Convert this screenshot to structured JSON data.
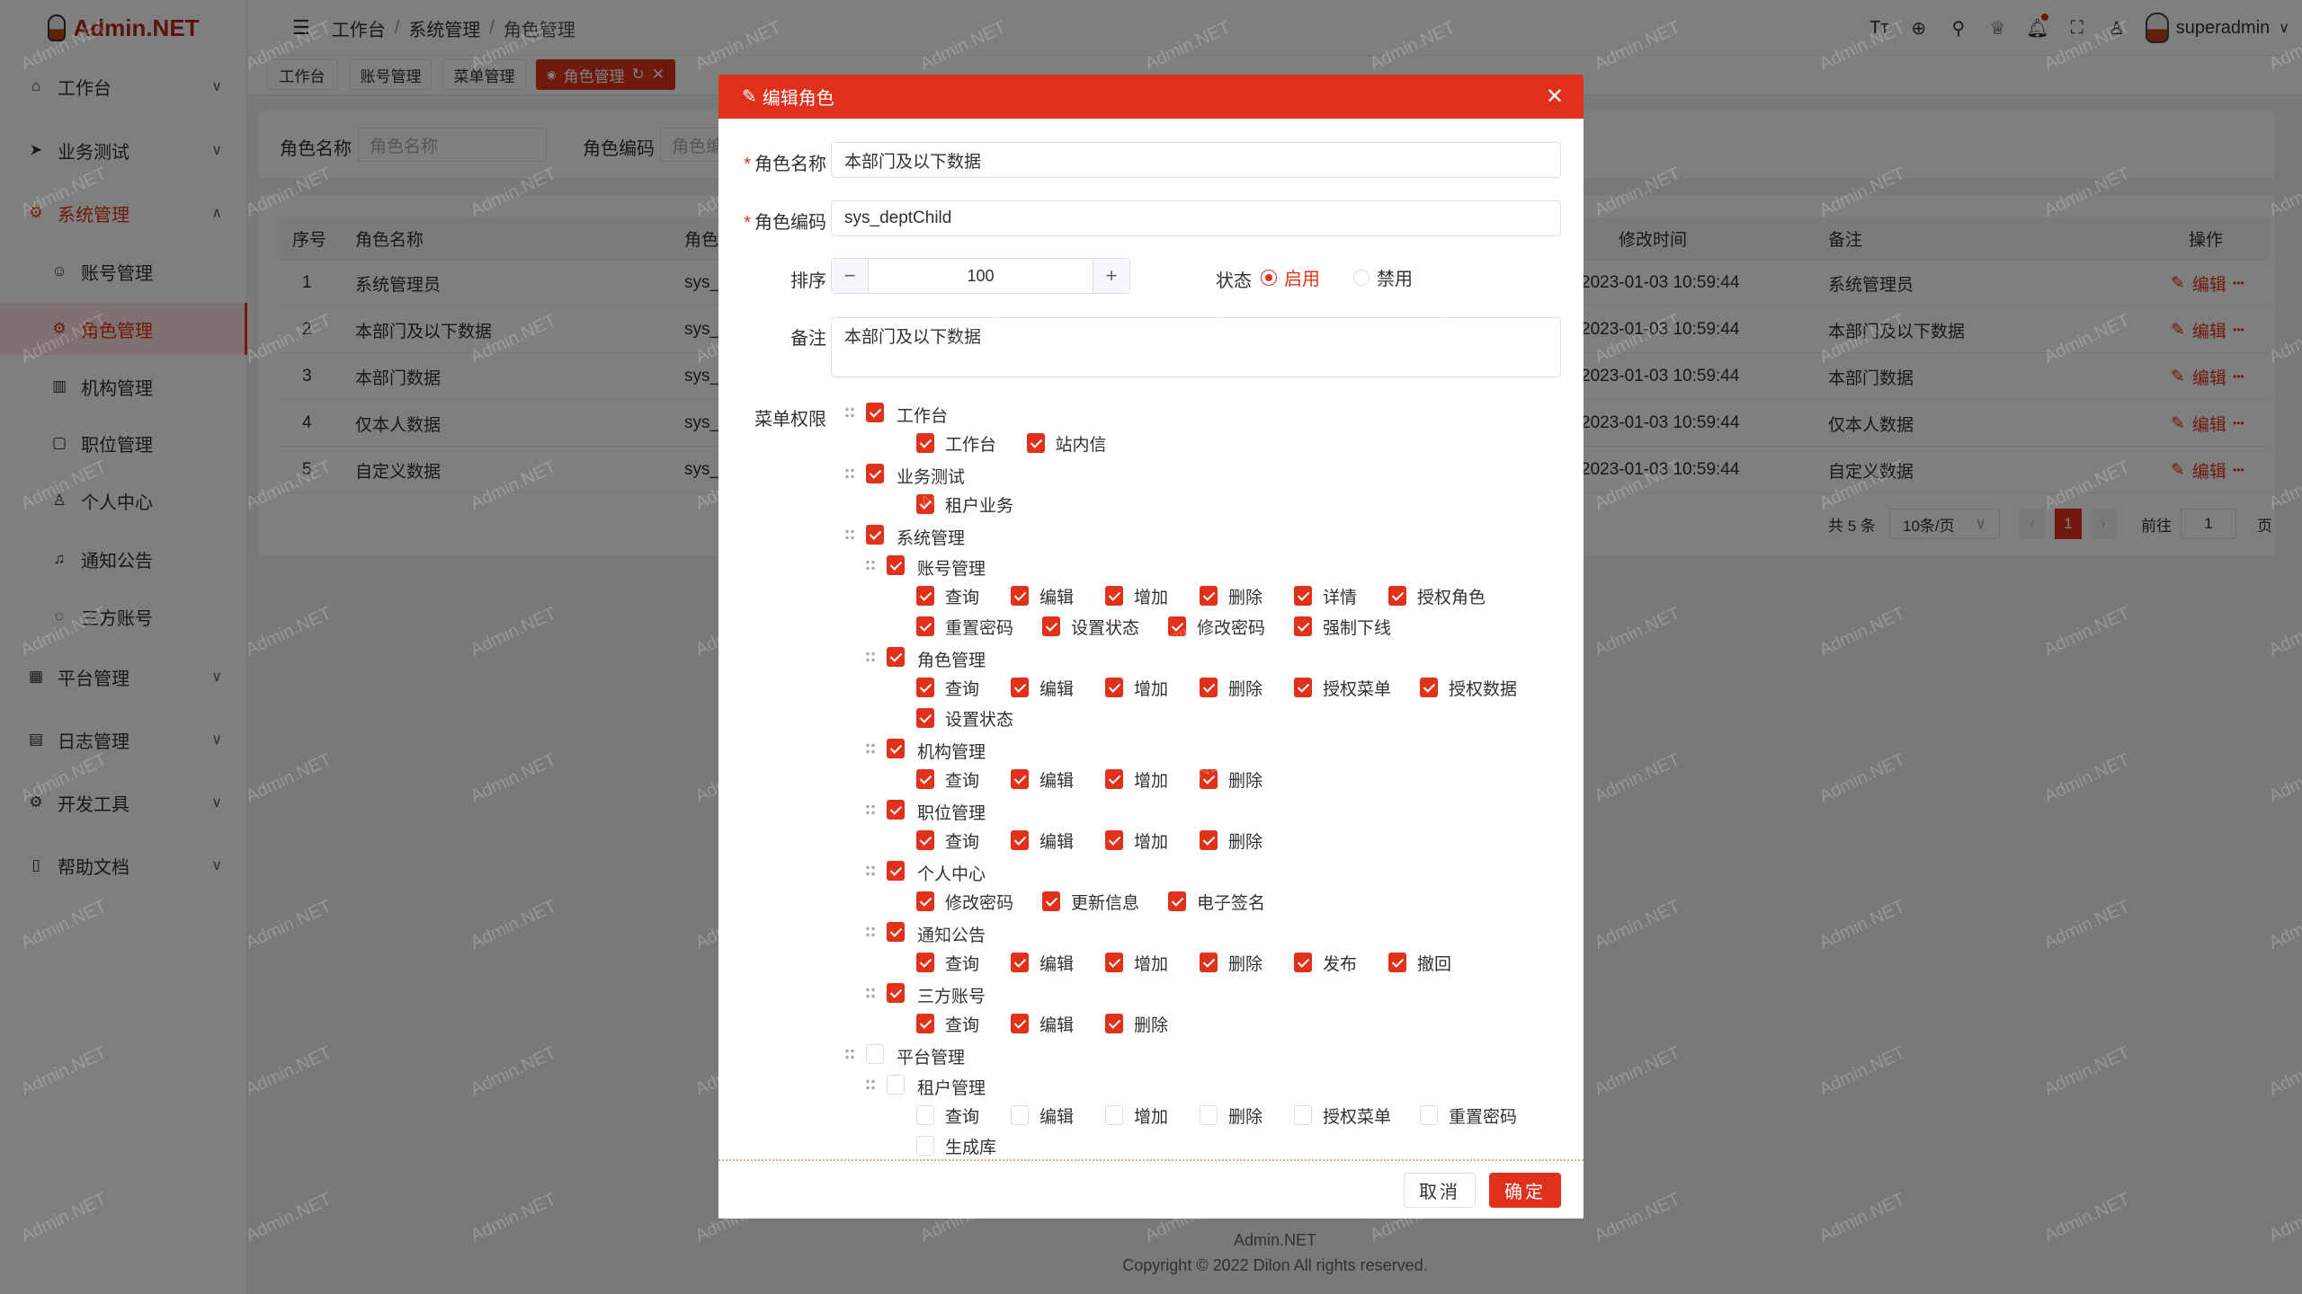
{
  "app": {
    "logo": "Admin.NET",
    "watermark": "Admin.NET",
    "accent": "#e0321a"
  },
  "sidebar": {
    "items": [
      {
        "label": "工作台",
        "icon": "home-icon",
        "glyph": "⌂",
        "chev": "∨",
        "type": "group"
      },
      {
        "label": "业务测试",
        "icon": "send-icon",
        "glyph": "➤",
        "chev": "∨",
        "type": "group"
      },
      {
        "label": "系统管理",
        "icon": "gear-icon",
        "glyph": "⚙",
        "chev": "∧",
        "type": "group-open"
      },
      {
        "label": "账号管理",
        "icon": "user-icon",
        "glyph": "☺",
        "type": "sub"
      },
      {
        "label": "角色管理",
        "icon": "role-icon",
        "glyph": "⚙",
        "type": "sub-selected"
      },
      {
        "label": "机构管理",
        "icon": "org-icon",
        "glyph": "▥",
        "type": "sub"
      },
      {
        "label": "职位管理",
        "icon": "position-icon",
        "glyph": "▢",
        "type": "sub"
      },
      {
        "label": "个人中心",
        "icon": "person-icon",
        "glyph": "♙",
        "type": "sub"
      },
      {
        "label": "通知公告",
        "icon": "bell-icon",
        "glyph": "♫",
        "type": "sub"
      },
      {
        "label": "三方账号",
        "icon": "chat-icon",
        "glyph": "◌",
        "type": "sub"
      },
      {
        "label": "平台管理",
        "icon": "grid-icon",
        "glyph": "▦",
        "chev": "∨",
        "type": "group"
      },
      {
        "label": "日志管理",
        "icon": "log-icon",
        "glyph": "▤",
        "chev": "∨",
        "type": "group"
      },
      {
        "label": "开发工具",
        "icon": "tool-icon",
        "glyph": "⚙",
        "chev": "∨",
        "type": "group"
      },
      {
        "label": "帮助文档",
        "icon": "doc-icon",
        "glyph": "▯",
        "chev": "∨",
        "type": "group"
      }
    ]
  },
  "header": {
    "breadcrumb": [
      "工作台",
      "系统管理",
      "角色管理"
    ],
    "username": "superadmin",
    "icons": [
      {
        "name": "font-size-icon",
        "glyph": "Tт"
      },
      {
        "name": "language-icon",
        "glyph": "⊕"
      },
      {
        "name": "search-icon",
        "glyph": "⚲"
      },
      {
        "name": "theme-shirt-icon",
        "glyph": "♕"
      },
      {
        "name": "bell-icon",
        "glyph": "🔔︎",
        "dot": true
      },
      {
        "name": "fullscreen-icon",
        "glyph": "⛶"
      },
      {
        "name": "user-icon",
        "glyph": "♙"
      }
    ]
  },
  "tabs": [
    {
      "label": "工作台"
    },
    {
      "label": "账号管理"
    },
    {
      "label": "菜单管理"
    },
    {
      "label": "角色管理",
      "active": true
    }
  ],
  "filter": {
    "role_name_label": "角色名称",
    "role_name_placeholder": "角色名称",
    "role_code_label": "角色编码",
    "role_code_placeholder": "角色编码"
  },
  "table": {
    "headers": {
      "index": "序号",
      "name": "角色名称",
      "code": "角色编码",
      "updated": "修改时间",
      "remark": "备注",
      "ops": "操作"
    },
    "rows": [
      {
        "index": "1",
        "name": "系统管理员",
        "code": "sys_",
        "updated": "2023-01-03 10:59:44",
        "remark": "系统管理员"
      },
      {
        "index": "2",
        "name": "本部门及以下数据",
        "code": "sys_",
        "updated": "2023-01-03 10:59:44",
        "remark": "本部门及以下数据"
      },
      {
        "index": "3",
        "name": "本部门数据",
        "code": "sys_",
        "updated": "2023-01-03 10:59:44",
        "remark": "本部门数据"
      },
      {
        "index": "4",
        "name": "仅本人数据",
        "code": "sys_",
        "updated": "2023-01-03 10:59:44",
        "remark": "仅本人数据"
      },
      {
        "index": "5",
        "name": "自定义数据",
        "code": "sys_",
        "updated": "2023-01-03 10:59:44",
        "remark": "自定义数据"
      }
    ],
    "edit_label": "编辑",
    "more_label": "•••"
  },
  "pagination": {
    "total": "共 5 条",
    "page_size": "10条/页",
    "current": "1",
    "goto_label": "前往",
    "goto_value": "1",
    "page_suffix": "页"
  },
  "modal": {
    "title": "编辑角色",
    "fields": {
      "name_label": "角色名称",
      "name_value": "本部门及以下数据",
      "code_label": "角色编码",
      "code_value": "sys_deptChild",
      "order_label": "排序",
      "order_value": "100",
      "status_label": "状态",
      "status_on": "启用",
      "status_off": "禁用",
      "status_selected": "启用",
      "remark_label": "备注",
      "remark_value": "本部门及以下数据",
      "menu_label": "菜单权限"
    },
    "tree": [
      {
        "label": "工作台",
        "checked": true,
        "leaves": [
          {
            "label": "工作台",
            "checked": true
          },
          {
            "label": "站内信",
            "checked": true
          }
        ]
      },
      {
        "label": "业务测试",
        "checked": true,
        "leaves": [
          {
            "label": "租户业务",
            "checked": true
          }
        ]
      },
      {
        "label": "系统管理",
        "checked": true,
        "children": [
          {
            "label": "账号管理",
            "checked": true,
            "leaves": [
              {
                "label": "查询",
                "checked": true
              },
              {
                "label": "编辑",
                "checked": true
              },
              {
                "label": "增加",
                "checked": true
              },
              {
                "label": "删除",
                "checked": true
              },
              {
                "label": "详情",
                "checked": true
              },
              {
                "label": "授权角色",
                "checked": true
              },
              {
                "label": "重置密码",
                "checked": true
              },
              {
                "label": "设置状态",
                "checked": true
              },
              {
                "label": "修改密码",
                "checked": true
              },
              {
                "label": "强制下线",
                "checked": true
              }
            ]
          },
          {
            "label": "角色管理",
            "checked": true,
            "leaves": [
              {
                "label": "查询",
                "checked": true
              },
              {
                "label": "编辑",
                "checked": true
              },
              {
                "label": "增加",
                "checked": true
              },
              {
                "label": "删除",
                "checked": true
              },
              {
                "label": "授权菜单",
                "checked": true
              },
              {
                "label": "授权数据",
                "checked": true
              },
              {
                "label": "设置状态",
                "checked": true
              }
            ]
          },
          {
            "label": "机构管理",
            "checked": true,
            "leaves": [
              {
                "label": "查询",
                "checked": true
              },
              {
                "label": "编辑",
                "checked": true
              },
              {
                "label": "增加",
                "checked": true
              },
              {
                "label": "删除",
                "checked": true
              }
            ]
          },
          {
            "label": "职位管理",
            "checked": true,
            "leaves": [
              {
                "label": "查询",
                "checked": true
              },
              {
                "label": "编辑",
                "checked": true
              },
              {
                "label": "增加",
                "checked": true
              },
              {
                "label": "删除",
                "checked": true
              }
            ]
          },
          {
            "label": "个人中心",
            "checked": true,
            "leaves": [
              {
                "label": "修改密码",
                "checked": true
              },
              {
                "label": "更新信息",
                "checked": true
              },
              {
                "label": "电子签名",
                "checked": true
              }
            ]
          },
          {
            "label": "通知公告",
            "checked": true,
            "leaves": [
              {
                "label": "查询",
                "checked": true
              },
              {
                "label": "编辑",
                "checked": true
              },
              {
                "label": "增加",
                "checked": true
              },
              {
                "label": "删除",
                "checked": true
              },
              {
                "label": "发布",
                "checked": true
              },
              {
                "label": "撤回",
                "checked": true
              }
            ]
          },
          {
            "label": "三方账号",
            "checked": true,
            "leaves": [
              {
                "label": "查询",
                "checked": true
              },
              {
                "label": "编辑",
                "checked": true
              },
              {
                "label": "删除",
                "checked": true
              }
            ]
          }
        ]
      },
      {
        "label": "平台管理",
        "checked": false,
        "children": [
          {
            "label": "租户管理",
            "checked": false,
            "leaves": [
              {
                "label": "查询",
                "checked": false
              },
              {
                "label": "编辑",
                "checked": false
              },
              {
                "label": "增加",
                "checked": false
              },
              {
                "label": "删除",
                "checked": false
              },
              {
                "label": "授权菜单",
                "checked": false
              },
              {
                "label": "重置密码",
                "checked": false
              },
              {
                "label": "生成库",
                "checked": false
              }
            ]
          }
        ]
      }
    ],
    "cancel_label": "取消",
    "confirm_label": "确定"
  },
  "footer": {
    "brand": "Admin.NET",
    "copyright": "Copyright © 2022 Dilon All rights reserved."
  }
}
